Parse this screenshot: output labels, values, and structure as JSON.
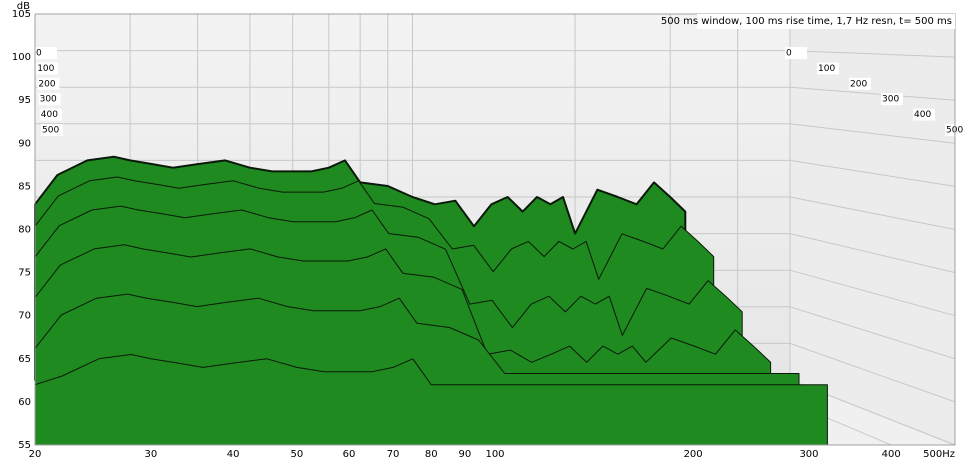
{
  "chart_data": {
    "type": "waterfall",
    "annotation": "500 ms window, 100 ms rise time,  1,7 Hz resn, t= 500 ms",
    "y_label": "dB",
    "log_x": true,
    "grid": true,
    "color": "#1f8a1f",
    "xlim": [
      20,
      500
    ],
    "xticks": [
      20,
      30,
      40,
      50,
      60,
      70,
      80,
      90,
      100,
      200,
      300,
      400,
      {
        "value": 500,
        "label": "500Hz"
      }
    ],
    "ylim": [
      55,
      105
    ],
    "yticks": [
      55,
      60,
      65,
      70,
      75,
      80,
      85,
      90,
      95,
      100,
      105
    ],
    "zlim": [
      0,
      500
    ],
    "zticks": [
      0,
      100,
      200,
      300,
      400,
      500
    ],
    "x": [
      20,
      22,
      25,
      28,
      30,
      33,
      36,
      40,
      45,
      50,
      55,
      60,
      65,
      70,
      75,
      80,
      90,
      100,
      110,
      120,
      130,
      140,
      150,
      160,
      170,
      180,
      190,
      200,
      220,
      240,
      260,
      280,
      300,
      320
    ],
    "series": [
      {
        "z": 0,
        "values": [
          79,
          83,
          85,
          85.5,
          85,
          84.5,
          84,
          84.5,
          85,
          84,
          83.5,
          83.5,
          83.5,
          84,
          85,
          82,
          81.5,
          80,
          79,
          79.5,
          76,
          79,
          80,
          78,
          80,
          79,
          80,
          75,
          81,
          80,
          79,
          82,
          80,
          78
        ]
      },
      {
        "z": 100,
        "values": [
          77,
          81,
          83,
          83.5,
          83,
          82.5,
          82,
          82.5,
          83,
          82,
          81.5,
          81.5,
          81.5,
          82,
          83,
          80,
          79.5,
          78,
          74,
          74.5,
          71,
          74,
          75,
          73,
          75,
          74,
          75,
          70,
          76,
          75,
          74,
          77,
          75,
          73
        ]
      },
      {
        "z": 200,
        "values": [
          74,
          78,
          80,
          80.5,
          80,
          79.5,
          79,
          79.5,
          80,
          79,
          78.5,
          78.5,
          78.5,
          79,
          80,
          77,
          76.5,
          75,
          68,
          68.5,
          65,
          68,
          69,
          67,
          69,
          68,
          69,
          64,
          70,
          69,
          68,
          71,
          69,
          67
        ]
      },
      {
        "z": 300,
        "values": [
          70,
          74,
          76,
          76.5,
          76,
          75.5,
          75,
          75.5,
          76,
          75,
          74.5,
          74.5,
          74.5,
          75,
          76,
          73,
          72.5,
          71,
          63,
          63.5,
          62,
          63,
          64,
          62,
          64,
          63,
          64,
          62,
          65,
          64,
          63,
          66,
          64,
          62
        ]
      },
      {
        "z": 400,
        "values": [
          65,
          69,
          71,
          71.5,
          71,
          70.5,
          70,
          70.5,
          71,
          70,
          69.5,
          69.5,
          69.5,
          70,
          71,
          68,
          67.5,
          66,
          62,
          62,
          62,
          62,
          62,
          62,
          62,
          62,
          62,
          62,
          62,
          62,
          62,
          62,
          62,
          62
        ]
      },
      {
        "z": 500,
        "values": [
          62,
          63,
          65,
          65.5,
          65,
          64.5,
          64,
          64.5,
          65,
          64,
          63.5,
          63.5,
          63.5,
          64,
          65,
          62,
          62,
          62,
          62,
          62,
          62,
          62,
          62,
          62,
          62,
          62,
          62,
          62,
          62,
          62,
          62,
          62,
          62,
          62
        ]
      }
    ]
  }
}
